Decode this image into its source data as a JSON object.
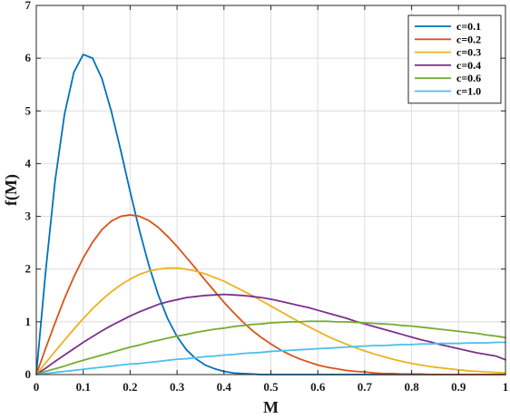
{
  "chart_data": {
    "type": "line",
    "title": "",
    "xlabel": "M",
    "ylabel": "f(M)",
    "xlim": [
      0,
      1
    ],
    "ylim": [
      0,
      7
    ],
    "xticks": [
      0,
      0.1,
      0.2,
      0.3,
      0.4,
      0.5,
      0.6,
      0.7,
      0.8,
      0.9,
      1
    ],
    "xtick_labels": [
      "0",
      "0.1",
      "0.2",
      "0.3",
      "0.4",
      "0.5",
      "0.6",
      "0.7",
      "0.8",
      "0.9",
      "1"
    ],
    "yticks": [
      0,
      1,
      2,
      3,
      4,
      5,
      6,
      7
    ],
    "ytick_labels": [
      "0",
      "1",
      "2",
      "3",
      "4",
      "5",
      "6",
      "7"
    ],
    "grid": true,
    "legend_position": "top-right",
    "x": [
      0,
      0.02,
      0.04,
      0.06,
      0.08,
      0.1,
      0.12,
      0.14,
      0.16,
      0.18,
      0.2,
      0.22,
      0.24,
      0.26,
      0.28,
      0.3,
      0.32,
      0.34,
      0.36,
      0.38,
      0.4,
      0.42,
      0.44,
      0.46,
      0.48,
      0.5,
      0.52,
      0.54,
      0.56,
      0.58,
      0.6,
      0.62,
      0.64,
      0.66,
      0.68,
      0.7,
      0.72,
      0.74,
      0.76,
      0.78,
      0.8,
      0.82,
      0.84,
      0.86,
      0.88,
      0.9,
      0.92,
      0.94,
      0.96,
      0.98,
      1
    ],
    "series": [
      {
        "name": "c=0.1",
        "color": "#0072BD",
        "values": [
          0,
          1.96,
          3.67,
          4.93,
          5.73,
          6.07,
          6.0,
          5.61,
          4.99,
          4.25,
          3.47,
          2.73,
          2.07,
          1.51,
          1.06,
          0.72,
          0.47,
          0.3,
          0.18,
          0.11,
          0.06,
          0.03,
          0.02,
          0.01,
          0.0,
          0.0,
          0.0,
          0.0,
          0.0,
          0.0,
          0.0,
          0.0,
          0.0,
          0.0,
          0.0,
          0.0,
          0.0,
          0.0,
          0.0,
          0.0,
          0.0,
          0.0,
          0.0,
          0.0,
          0.0,
          0.0,
          0.0,
          0.0,
          0.0,
          0.0,
          0.0
        ]
      },
      {
        "name": "c=0.2",
        "color": "#D95319",
        "values": [
          0,
          0.5,
          0.98,
          1.44,
          1.85,
          2.21,
          2.51,
          2.75,
          2.91,
          3.0,
          3.03,
          3.0,
          2.92,
          2.79,
          2.62,
          2.43,
          2.22,
          2.01,
          1.79,
          1.58,
          1.37,
          1.18,
          1.0,
          0.84,
          0.7,
          0.58,
          0.47,
          0.38,
          0.3,
          0.24,
          0.18,
          0.14,
          0.11,
          0.08,
          0.06,
          0.05,
          0.03,
          0.02,
          0.02,
          0.01,
          0.01,
          0.01,
          0.0,
          0.0,
          0.0,
          0.0,
          0.0,
          0.0,
          0.0,
          0.0,
          0.0
        ]
      },
      {
        "name": "c=0.3",
        "color": "#EDB120",
        "values": [
          0,
          0.22,
          0.44,
          0.65,
          0.86,
          1.06,
          1.25,
          1.42,
          1.57,
          1.7,
          1.81,
          1.9,
          1.96,
          2.0,
          2.02,
          2.02,
          2.0,
          1.96,
          1.91,
          1.84,
          1.77,
          1.68,
          1.59,
          1.5,
          1.4,
          1.3,
          1.2,
          1.1,
          1.0,
          0.91,
          0.82,
          0.73,
          0.65,
          0.58,
          0.51,
          0.45,
          0.39,
          0.34,
          0.29,
          0.25,
          0.21,
          0.18,
          0.15,
          0.13,
          0.11,
          0.09,
          0.07,
          0.06,
          0.05,
          0.04,
          0.03
        ]
      },
      {
        "name": "c=0.4",
        "color": "#7E2F8E",
        "values": [
          0,
          0.12,
          0.25,
          0.37,
          0.49,
          0.61,
          0.72,
          0.83,
          0.93,
          1.02,
          1.11,
          1.19,
          1.26,
          1.33,
          1.38,
          1.42,
          1.46,
          1.48,
          1.5,
          1.51,
          1.52,
          1.51,
          1.5,
          1.48,
          1.46,
          1.43,
          1.39,
          1.35,
          1.31,
          1.27,
          1.22,
          1.17,
          1.12,
          1.07,
          1.01,
          0.96,
          0.91,
          0.86,
          0.81,
          0.76,
          0.71,
          0.66,
          0.62,
          0.57,
          0.53,
          0.49,
          0.45,
          0.41,
          0.38,
          0.35,
          0.28
        ]
      },
      {
        "name": "c=0.6",
        "color": "#77AC30",
        "values": [
          0,
          0.06,
          0.11,
          0.16,
          0.22,
          0.27,
          0.32,
          0.37,
          0.42,
          0.47,
          0.52,
          0.56,
          0.61,
          0.65,
          0.69,
          0.73,
          0.76,
          0.8,
          0.83,
          0.86,
          0.88,
          0.91,
          0.93,
          0.95,
          0.96,
          0.98,
          0.99,
          1.0,
          1.0,
          1.01,
          1.01,
          1.01,
          1.0,
          1.0,
          0.99,
          0.98,
          0.97,
          0.96,
          0.95,
          0.93,
          0.92,
          0.9,
          0.88,
          0.86,
          0.84,
          0.82,
          0.8,
          0.78,
          0.75,
          0.73,
          0.7
        ]
      },
      {
        "name": "c=1.0",
        "color": "#4DBEEE",
        "values": [
          0,
          0.02,
          0.04,
          0.06,
          0.08,
          0.1,
          0.12,
          0.14,
          0.16,
          0.18,
          0.2,
          0.21,
          0.23,
          0.25,
          0.27,
          0.29,
          0.3,
          0.32,
          0.34,
          0.35,
          0.37,
          0.38,
          0.4,
          0.41,
          0.42,
          0.44,
          0.45,
          0.46,
          0.47,
          0.48,
          0.49,
          0.5,
          0.51,
          0.52,
          0.53,
          0.54,
          0.55,
          0.55,
          0.56,
          0.57,
          0.57,
          0.58,
          0.58,
          0.59,
          0.59,
          0.59,
          0.6,
          0.6,
          0.6,
          0.61,
          0.61
        ]
      }
    ]
  }
}
